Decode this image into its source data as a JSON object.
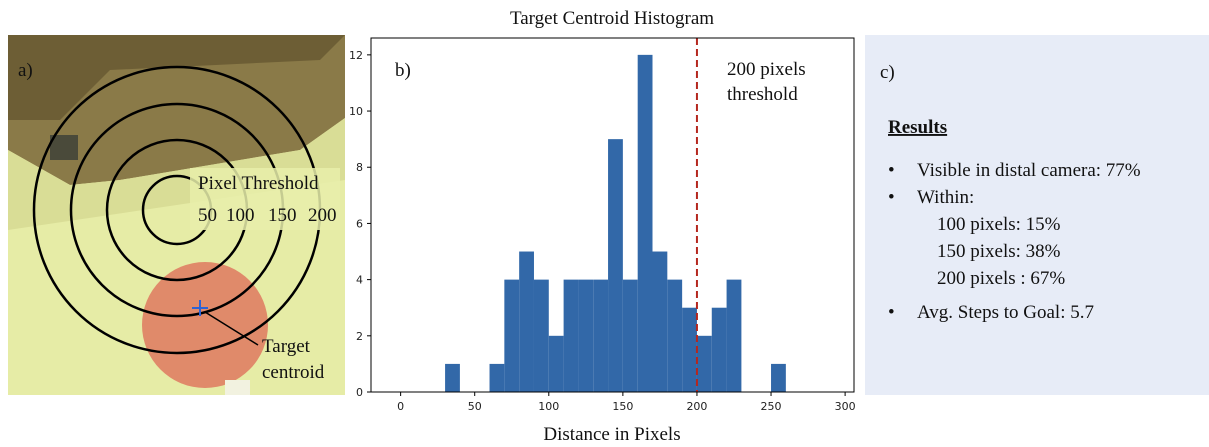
{
  "chart_data": {
    "type": "histogram",
    "title": "Target Centroid Histogram",
    "panel_label": "b)",
    "x_label": "Distance in Pixels",
    "bins": [
      30,
      40,
      50,
      60,
      70,
      80,
      90,
      100,
      110,
      120,
      130,
      140,
      150,
      160,
      170,
      180,
      190,
      200,
      210,
      220,
      230,
      240,
      250,
      260
    ],
    "values": [
      1,
      0,
      0,
      1,
      4,
      5,
      4,
      2,
      4,
      4,
      4,
      9,
      4,
      12,
      5,
      4,
      3,
      2,
      3,
      4,
      0,
      0,
      1
    ],
    "color": "#3268a8",
    "threshold": 200,
    "threshold_color": "#b5271f",
    "annotation": [
      "200 pixels",
      "threshold"
    ],
    "xlim": [
      -20,
      306
    ],
    "ylim": [
      0,
      12.6
    ],
    "xticks": [
      0,
      50,
      100,
      150,
      200,
      250,
      300
    ],
    "yticks": [
      0,
      2,
      4,
      6,
      8,
      10,
      12
    ]
  },
  "panel_a": {
    "label": "a)",
    "ring_title": "Pixel Threshold",
    "ring_labels": [
      "50",
      "100",
      "150",
      "200"
    ],
    "target_label": [
      "Target",
      "centroid"
    ]
  },
  "panel_c": {
    "label": "c)",
    "heading": "Results",
    "items": [
      "Visible in distal camera: 77%",
      "Within:",
      "Avg. Steps to Goal: 5.7"
    ],
    "sub_items": [
      "100 pixels: 15%",
      "150 pixels: 38%",
      "200 pixels : 67%"
    ]
  }
}
